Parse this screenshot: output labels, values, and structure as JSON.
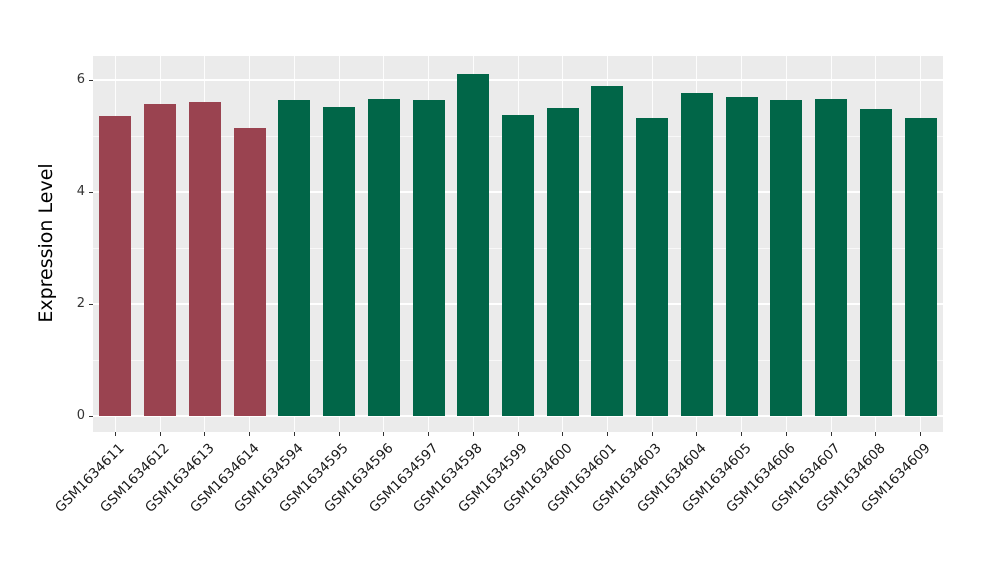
{
  "chart_data": {
    "type": "bar",
    "title": "",
    "xlabel": "",
    "ylabel": "Expression Level",
    "categories": [
      "GSM1634611",
      "GSM1634612",
      "GSM1634613",
      "GSM1634614",
      "GSM1634594",
      "GSM1634595",
      "GSM1634596",
      "GSM1634597",
      "GSM1634598",
      "GSM1634599",
      "GSM1634600",
      "GSM1634601",
      "GSM1634603",
      "GSM1634604",
      "GSM1634605",
      "GSM1634606",
      "GSM1634607",
      "GSM1634608",
      "GSM1634609"
    ],
    "values": [
      5.35,
      5.57,
      5.6,
      5.15,
      5.64,
      5.52,
      5.67,
      5.65,
      6.11,
      5.37,
      5.5,
      5.9,
      5.33,
      5.77,
      5.7,
      5.64,
      5.67,
      5.49,
      5.33
    ],
    "bar_colors": [
      "#9A4350",
      "#9A4350",
      "#9A4350",
      "#9A4350",
      "#016648",
      "#016648",
      "#016648",
      "#016648",
      "#016648",
      "#016648",
      "#016648",
      "#016648",
      "#016648",
      "#016648",
      "#016648",
      "#016648",
      "#016648",
      "#016648",
      "#016648"
    ],
    "groups": [
      {
        "name": "red-group",
        "color": "#9A4350",
        "categories": [
          "GSM1634611",
          "GSM1634612",
          "GSM1634613",
          "GSM1634614"
        ]
      },
      {
        "name": "green-group",
        "color": "#016648",
        "categories": [
          "GSM1634594",
          "GSM1634595",
          "GSM1634596",
          "GSM1634597",
          "GSM1634598",
          "GSM1634599",
          "GSM1634600",
          "GSM1634601",
          "GSM1634603",
          "GSM1634604",
          "GSM1634605",
          "GSM1634606",
          "GSM1634607",
          "GSM1634608",
          "GSM1634609"
        ]
      }
    ],
    "ylim": [
      0,
      6.43
    ],
    "yticks": [
      0,
      2,
      4,
      6
    ],
    "yticks_minor": [
      1,
      3,
      5
    ],
    "grid": true,
    "legend_position": "none",
    "panel_background": "#EBEBEB",
    "gridline_color": "#FFFFFF",
    "tick_color": "#333333",
    "tick_label_color": "#333333",
    "x_label_angle_deg": 45
  }
}
